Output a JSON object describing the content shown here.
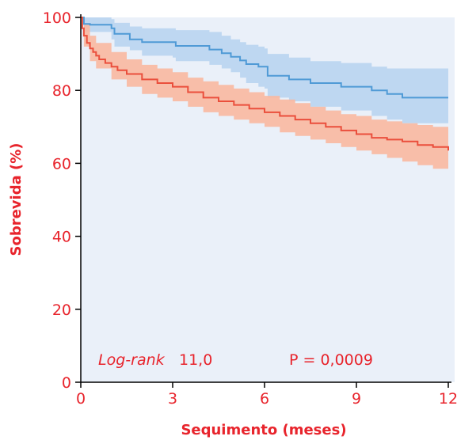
{
  "chart_data": {
    "type": "line",
    "title": "",
    "xlabel": "Sequimento (meses)",
    "ylabel": "Sobrevida (%)",
    "xlim": [
      0,
      12
    ],
    "ylim": [
      0,
      100
    ],
    "x_ticks": [
      0,
      3,
      6,
      9,
      12
    ],
    "x_tick_labels": [
      "0",
      "3",
      "6",
      "9",
      "12"
    ],
    "y_ticks": [
      0,
      20,
      40,
      60,
      80,
      100
    ],
    "y_tick_labels": [
      "0",
      "20",
      "40",
      "60",
      "80",
      "100"
    ],
    "grid": false,
    "legend": "none",
    "annotations": {
      "logrank_label": "Log-rank",
      "logrank_value": "11,0",
      "p_value": "P = 0,0009"
    },
    "colors": {
      "axis_text": "#e8242c",
      "plot_background": "#eaf0f9",
      "series_blue_line": "#4f9ad6",
      "series_blue_band": "#b9d4ef",
      "series_red_line": "#ea4f3c",
      "series_red_band": "#f9b8a0"
    },
    "series": [
      {
        "color": "#4f9ad6",
        "band_color": "#b9d4ef",
        "points": [
          [
            0,
            100
          ],
          [
            0.1,
            98.2
          ],
          [
            0.3,
            98
          ],
          [
            0.8,
            98
          ],
          [
            1.0,
            97
          ],
          [
            1.1,
            95.5
          ],
          [
            1.5,
            95.5
          ],
          [
            1.6,
            94
          ],
          [
            2.0,
            93.2
          ],
          [
            3.0,
            93.2
          ],
          [
            3.1,
            92.2
          ],
          [
            4.0,
            92.2
          ],
          [
            4.2,
            91.2
          ],
          [
            4.6,
            90.2
          ],
          [
            4.9,
            89.2
          ],
          [
            5.2,
            88.2
          ],
          [
            5.4,
            87.2
          ],
          [
            5.8,
            86.5
          ],
          [
            6.0,
            86.5
          ],
          [
            6.1,
            84
          ],
          [
            6.7,
            84
          ],
          [
            6.8,
            83
          ],
          [
            7.5,
            82
          ],
          [
            8.5,
            81
          ],
          [
            9.5,
            80
          ],
          [
            10.0,
            79
          ],
          [
            10.5,
            78
          ],
          [
            12,
            78
          ]
        ],
        "upper": [
          [
            0,
            100
          ],
          [
            0.1,
            100
          ],
          [
            1.0,
            99.5
          ],
          [
            1.1,
            98.5
          ],
          [
            1.6,
            97.5
          ],
          [
            2.0,
            97
          ],
          [
            3.0,
            97
          ],
          [
            3.1,
            96.5
          ],
          [
            4.2,
            96
          ],
          [
            4.6,
            95
          ],
          [
            4.9,
            94
          ],
          [
            5.2,
            93.2
          ],
          [
            5.4,
            92.5
          ],
          [
            5.8,
            92
          ],
          [
            6.0,
            91.5
          ],
          [
            6.1,
            90
          ],
          [
            6.8,
            89
          ],
          [
            7.5,
            88
          ],
          [
            8.5,
            87.5
          ],
          [
            9.5,
            86.5
          ],
          [
            10.0,
            86
          ],
          [
            10.5,
            86
          ],
          [
            12,
            86
          ]
        ],
        "lower": [
          [
            0,
            100
          ],
          [
            0.1,
            96
          ],
          [
            1.0,
            94
          ],
          [
            1.1,
            92
          ],
          [
            1.6,
            91
          ],
          [
            2.0,
            89.5
          ],
          [
            3.0,
            89
          ],
          [
            3.1,
            88
          ],
          [
            4.2,
            87
          ],
          [
            4.6,
            86
          ],
          [
            4.9,
            85
          ],
          [
            5.2,
            83.5
          ],
          [
            5.4,
            82
          ],
          [
            5.8,
            81
          ],
          [
            6.0,
            80.5
          ],
          [
            6.1,
            78
          ],
          [
            6.8,
            77
          ],
          [
            7.5,
            75.5
          ],
          [
            8.5,
            74.5
          ],
          [
            9.5,
            73
          ],
          [
            10.0,
            72
          ],
          [
            10.5,
            71
          ],
          [
            12,
            70.5
          ]
        ]
      },
      {
        "color": "#ea4f3c",
        "band_color": "#f9b8a0",
        "points": [
          [
            0,
            100
          ],
          [
            0.05,
            97
          ],
          [
            0.1,
            95
          ],
          [
            0.2,
            93
          ],
          [
            0.3,
            91.5
          ],
          [
            0.4,
            90.5
          ],
          [
            0.5,
            89.5
          ],
          [
            0.6,
            88.5
          ],
          [
            0.8,
            87.5
          ],
          [
            1.0,
            86.5
          ],
          [
            1.2,
            85.5
          ],
          [
            1.5,
            84.5
          ],
          [
            2.0,
            83
          ],
          [
            2.5,
            82
          ],
          [
            3.0,
            81
          ],
          [
            3.5,
            79.5
          ],
          [
            4.0,
            78
          ],
          [
            4.5,
            77
          ],
          [
            5.0,
            76
          ],
          [
            5.5,
            75
          ],
          [
            6.0,
            74
          ],
          [
            6.5,
            73
          ],
          [
            7.0,
            72
          ],
          [
            7.5,
            71
          ],
          [
            8.0,
            70
          ],
          [
            8.5,
            69
          ],
          [
            9.0,
            68
          ],
          [
            9.5,
            67
          ],
          [
            10.0,
            66.5
          ],
          [
            10.5,
            66
          ],
          [
            11.0,
            65
          ],
          [
            11.5,
            64.5
          ],
          [
            12,
            63.5
          ]
        ],
        "upper": [
          [
            0,
            100
          ],
          [
            0.1,
            98
          ],
          [
            0.3,
            95
          ],
          [
            0.5,
            93
          ],
          [
            1.0,
            90.5
          ],
          [
            1.5,
            88.5
          ],
          [
            2.0,
            87
          ],
          [
            2.5,
            86
          ],
          [
            3.0,
            85
          ],
          [
            3.5,
            83.5
          ],
          [
            4.0,
            82.5
          ],
          [
            4.5,
            81.5
          ],
          [
            5.0,
            80.5
          ],
          [
            5.5,
            79.5
          ],
          [
            6.0,
            78.5
          ],
          [
            6.5,
            77.5
          ],
          [
            7.0,
            76.5
          ],
          [
            7.5,
            75.5
          ],
          [
            8.0,
            74.5
          ],
          [
            8.5,
            73.5
          ],
          [
            9.0,
            73
          ],
          [
            9.5,
            72
          ],
          [
            10.0,
            71.5
          ],
          [
            10.5,
            71
          ],
          [
            11.0,
            70.5
          ],
          [
            11.5,
            70
          ],
          [
            12,
            69
          ]
        ],
        "lower": [
          [
            0,
            100
          ],
          [
            0.1,
            92
          ],
          [
            0.3,
            88
          ],
          [
            0.5,
            86
          ],
          [
            1.0,
            83
          ],
          [
            1.5,
            81
          ],
          [
            2.0,
            79
          ],
          [
            2.5,
            78
          ],
          [
            3.0,
            77
          ],
          [
            3.5,
            75.5
          ],
          [
            4.0,
            74
          ],
          [
            4.5,
            73
          ],
          [
            5.0,
            72
          ],
          [
            5.5,
            71
          ],
          [
            6.0,
            70
          ],
          [
            6.5,
            68.5
          ],
          [
            7.0,
            67.5
          ],
          [
            7.5,
            66.5
          ],
          [
            8.0,
            65.5
          ],
          [
            8.5,
            64.5
          ],
          [
            9.0,
            63.5
          ],
          [
            9.5,
            62.5
          ],
          [
            10.0,
            61.5
          ],
          [
            10.5,
            60.5
          ],
          [
            11.0,
            59.5
          ],
          [
            11.5,
            58.5
          ],
          [
            12,
            57.5
          ]
        ]
      }
    ]
  }
}
